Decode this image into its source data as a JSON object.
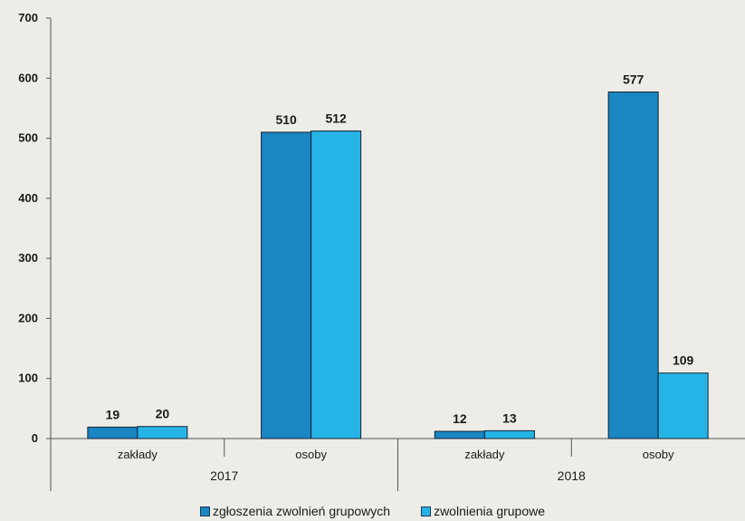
{
  "chart_data": {
    "type": "bar",
    "title": "",
    "ylim": [
      0,
      700
    ],
    "yticks": [
      "0",
      "100",
      "200",
      "300",
      "400",
      "500",
      "600",
      "700"
    ],
    "groups": [
      {
        "label": "2017",
        "categories": [
          "zakłady",
          "osoby"
        ]
      },
      {
        "label": "2018",
        "categories": [
          "zakłady",
          "osoby"
        ]
      }
    ],
    "categories": [
      "zakłady",
      "osoby",
      "zakłady",
      "osoby"
    ],
    "series": [
      {
        "name": "zgłoszenia zwolnień grupowych",
        "color": "#1a86c2",
        "values": [
          19,
          510,
          12,
          577
        ]
      },
      {
        "name": "zwolnienia grupowe",
        "color": "#26b4e6",
        "values": [
          20,
          512,
          13,
          109
        ]
      }
    ],
    "grid": false,
    "legend": "bottom"
  }
}
